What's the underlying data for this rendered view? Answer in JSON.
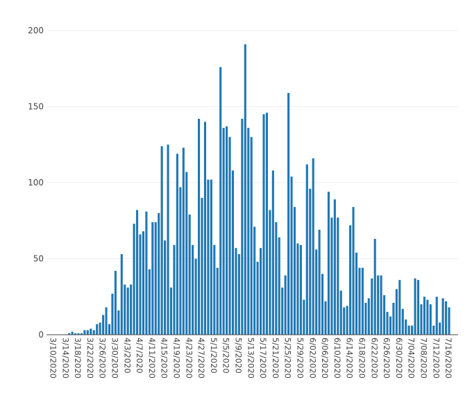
{
  "chart_data": {
    "type": "bar",
    "title": "",
    "xlabel": "",
    "ylabel": "",
    "ylim": [
      0,
      200
    ],
    "yticks": [
      0,
      50,
      100,
      150,
      200
    ],
    "grid": true,
    "bar_color": "#1f77b4",
    "start_date": "2020-03-10",
    "xtick_labels": [
      "3/10/2020",
      "3/14/2020",
      "3/18/2020",
      "3/22/2020",
      "3/26/2020",
      "3/30/2020",
      "4/3/2020",
      "4/7/2020",
      "4/11/2020",
      "4/15/2020",
      "4/19/2020",
      "4/23/2020",
      "4/27/2020",
      "5/1/2020",
      "5/5/2020",
      "5/9/2020",
      "5/13/2020",
      "5/17/2020",
      "5/21/2020",
      "5/25/2020",
      "5/29/2020",
      "6/02/2020",
      "6/06/2020",
      "6/10/2020",
      "6/14/2020",
      "6/18/2020",
      "6/22/2020",
      "6/26/2020",
      "6/30/2020",
      "7/04/2020",
      "7/08/2020",
      "7/12/2020",
      "7/16/2020"
    ],
    "values": [
      0,
      0,
      0,
      0,
      0,
      0,
      0,
      1,
      2,
      1,
      1,
      1,
      3,
      3,
      4,
      3,
      7,
      8,
      13,
      18,
      7,
      27,
      42,
      16,
      53,
      33,
      31,
      33,
      73,
      82,
      66,
      68,
      81,
      43,
      74,
      74,
      80,
      124,
      62,
      125,
      31,
      59,
      119,
      97,
      123,
      107,
      79,
      59,
      50,
      142,
      90,
      140,
      102,
      102,
      59,
      44,
      176,
      136,
      137,
      130,
      108,
      57,
      53,
      142,
      191,
      136,
      130,
      71,
      48,
      57,
      145,
      146,
      82,
      108,
      74,
      64,
      31,
      39,
      159,
      104,
      84,
      60,
      59,
      23,
      112,
      96,
      116,
      56,
      69,
      40,
      22,
      94,
      77,
      89,
      77,
      29,
      18,
      19,
      72,
      84,
      54,
      44,
      44,
      21,
      24,
      37,
      63,
      39,
      39,
      26,
      15,
      12,
      21,
      30,
      36,
      17,
      10,
      6,
      6,
      37,
      36,
      20,
      25,
      23,
      20,
      6,
      25,
      8,
      24,
      22,
      18
    ]
  }
}
